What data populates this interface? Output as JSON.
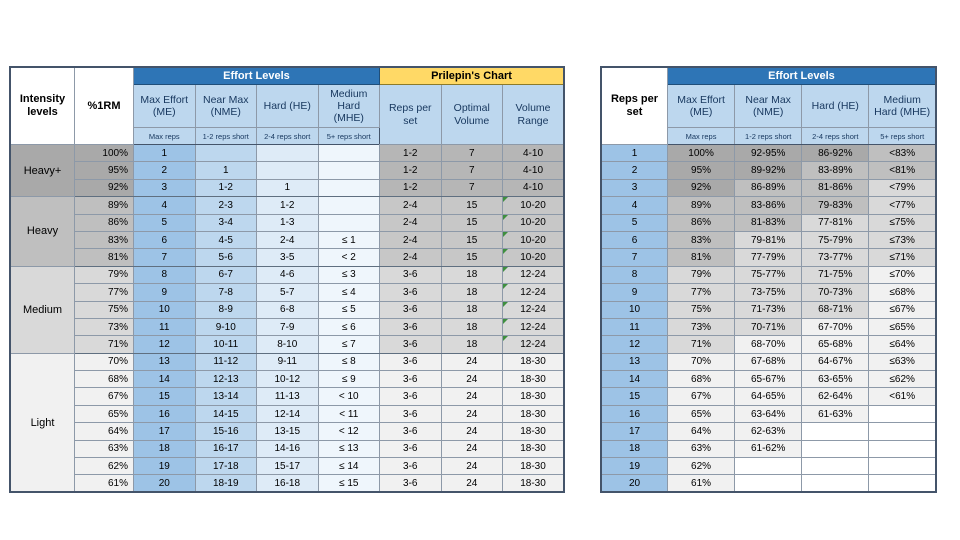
{
  "colors": {
    "effort_banner_blue": "#2e75b6",
    "effort_subheader_blue": "#bdd7ee",
    "prilepin_banner_yellow": "#ffd966",
    "prilepin_subheader_yellow": "#fff2cc",
    "me_column_blue": "#9dc3e6",
    "nme_column_blue": "#bdd7ee",
    "he_column_blue": "#deebf7",
    "mhe_column_blue": "#eff6fc",
    "gray_heavy_plus": "#a9a9a9",
    "gray_heavy": "#bfbfbf",
    "gray_medium": "#d9d9d9",
    "gray_light": "#f1f1f1",
    "comment_flag_green": "#3f8f3f"
  },
  "left_table": {
    "headers": {
      "intensity": "Intensity levels",
      "pct1rm": "%1RM",
      "effort_banner": "Effort Levels",
      "prilepin_banner": "Prilepin's Chart",
      "effort_cols": [
        {
          "title": "Max Effort (ME)",
          "sub": "Max reps"
        },
        {
          "title": "Near Max (NME)",
          "sub": "1-2 reps short"
        },
        {
          "title": "Hard (HE)",
          "sub": "2-4 reps short"
        },
        {
          "title": "Medium Hard (MHE)",
          "sub": "5+ reps short"
        }
      ],
      "prilepin_cols": [
        "Reps per set",
        "Optimal Volume",
        "Volume Range"
      ]
    },
    "groups": [
      {
        "label": "Heavy+",
        "rows": 3,
        "shade": "g1",
        "pshade": "p1"
      },
      {
        "label": "Heavy",
        "rows": 4,
        "shade": "g2",
        "pshade": "p2"
      },
      {
        "label": "Medium",
        "rows": 5,
        "shade": "g3",
        "pshade": "g3"
      },
      {
        "label": "Light",
        "rows": 8,
        "shade": "g4",
        "pshade": "g4"
      }
    ],
    "rows": [
      {
        "pct": "100%",
        "me": "1",
        "nme": "",
        "he": "",
        "mhe": "",
        "reps": "1-2",
        "opt": "7",
        "vol": "4-10",
        "flag": false
      },
      {
        "pct": "95%",
        "me": "2",
        "nme": "1",
        "he": "",
        "mhe": "",
        "reps": "1-2",
        "opt": "7",
        "vol": "4-10",
        "flag": false
      },
      {
        "pct": "92%",
        "me": "3",
        "nme": "1-2",
        "he": "1",
        "mhe": "",
        "reps": "1-2",
        "opt": "7",
        "vol": "4-10",
        "flag": false
      },
      {
        "pct": "89%",
        "me": "4",
        "nme": "2-3",
        "he": "1-2",
        "mhe": "",
        "reps": "2-4",
        "opt": "15",
        "vol": "10-20",
        "flag": true
      },
      {
        "pct": "86%",
        "me": "5",
        "nme": "3-4",
        "he": "1-3",
        "mhe": "",
        "reps": "2-4",
        "opt": "15",
        "vol": "10-20",
        "flag": true
      },
      {
        "pct": "83%",
        "me": "6",
        "nme": "4-5",
        "he": "2-4",
        "mhe": "≤ 1",
        "reps": "2-4",
        "opt": "15",
        "vol": "10-20",
        "flag": true
      },
      {
        "pct": "81%",
        "me": "7",
        "nme": "5-6",
        "he": "3-5",
        "mhe": "< 2",
        "reps": "2-4",
        "opt": "15",
        "vol": "10-20",
        "flag": true
      },
      {
        "pct": "79%",
        "me": "8",
        "nme": "6-7",
        "he": "4-6",
        "mhe": "≤ 3",
        "reps": "3-6",
        "opt": "18",
        "vol": "12-24",
        "flag": true
      },
      {
        "pct": "77%",
        "me": "9",
        "nme": "7-8",
        "he": "5-7",
        "mhe": "≤ 4",
        "reps": "3-6",
        "opt": "18",
        "vol": "12-24",
        "flag": true
      },
      {
        "pct": "75%",
        "me": "10",
        "nme": "8-9",
        "he": "6-8",
        "mhe": "≤ 5",
        "reps": "3-6",
        "opt": "18",
        "vol": "12-24",
        "flag": true
      },
      {
        "pct": "73%",
        "me": "11",
        "nme": "9-10",
        "he": "7-9",
        "mhe": "≤ 6",
        "reps": "3-6",
        "opt": "18",
        "vol": "12-24",
        "flag": true
      },
      {
        "pct": "71%",
        "me": "12",
        "nme": "10-11",
        "he": "8-10",
        "mhe": "≤ 7",
        "reps": "3-6",
        "opt": "18",
        "vol": "12-24",
        "flag": true
      },
      {
        "pct": "70%",
        "me": "13",
        "nme": "11-12",
        "he": "9-11",
        "mhe": "≤ 8",
        "reps": "3-6",
        "opt": "24",
        "vol": "18-30",
        "flag": false
      },
      {
        "pct": "68%",
        "me": "14",
        "nme": "12-13",
        "he": "10-12",
        "mhe": "≤ 9",
        "reps": "3-6",
        "opt": "24",
        "vol": "18-30",
        "flag": false
      },
      {
        "pct": "67%",
        "me": "15",
        "nme": "13-14",
        "he": "11-13",
        "mhe": "< 10",
        "reps": "3-6",
        "opt": "24",
        "vol": "18-30",
        "flag": false
      },
      {
        "pct": "65%",
        "me": "16",
        "nme": "14-15",
        "he": "12-14",
        "mhe": "< 11",
        "reps": "3-6",
        "opt": "24",
        "vol": "18-30",
        "flag": false
      },
      {
        "pct": "64%",
        "me": "17",
        "nme": "15-16",
        "he": "13-15",
        "mhe": "< 12",
        "reps": "3-6",
        "opt": "24",
        "vol": "18-30",
        "flag": false
      },
      {
        "pct": "63%",
        "me": "18",
        "nme": "16-17",
        "he": "14-16",
        "mhe": "≤ 13",
        "reps": "3-6",
        "opt": "24",
        "vol": "18-30",
        "flag": false
      },
      {
        "pct": "62%",
        "me": "19",
        "nme": "17-18",
        "he": "15-17",
        "mhe": "≤ 14",
        "reps": "3-6",
        "opt": "24",
        "vol": "18-30",
        "flag": false
      },
      {
        "pct": "61%",
        "me": "20",
        "nme": "18-19",
        "he": "16-18",
        "mhe": "≤ 15",
        "reps": "3-6",
        "opt": "24",
        "vol": "18-30",
        "flag": false
      }
    ]
  },
  "right_table": {
    "headers": {
      "reps": "Reps per set",
      "effort_banner": "Effort Levels",
      "effort_cols": [
        {
          "title": "Max Effort (ME)",
          "sub": "Max reps"
        },
        {
          "title": "Near Max (NME)",
          "sub": "1-2 reps short"
        },
        {
          "title": "Hard (HE)",
          "sub": "2-4 reps short"
        },
        {
          "title": "Medium Hard (MHE)",
          "sub": "5+ reps short"
        }
      ]
    },
    "rows": [
      {
        "reps": "1",
        "cells": [
          "100%",
          "92-95%",
          "86-92%",
          "<83%"
        ],
        "shades": [
          "g1",
          "g1",
          "g1",
          "g2"
        ]
      },
      {
        "reps": "2",
        "cells": [
          "95%",
          "89-92%",
          "83-89%",
          "<81%"
        ],
        "shades": [
          "g1",
          "g1",
          "g2",
          "g2"
        ]
      },
      {
        "reps": "3",
        "cells": [
          "92%",
          "86-89%",
          "81-86%",
          "<79%"
        ],
        "shades": [
          "g1",
          "g2",
          "g2",
          "g3"
        ]
      },
      {
        "reps": "4",
        "cells": [
          "89%",
          "83-86%",
          "79-83%",
          "<77%"
        ],
        "shades": [
          "g2",
          "g2",
          "g2",
          "g3"
        ]
      },
      {
        "reps": "5",
        "cells": [
          "86%",
          "81-83%",
          "77-81%",
          "≤75%"
        ],
        "shades": [
          "g2",
          "g2",
          "g3",
          "g3"
        ]
      },
      {
        "reps": "6",
        "cells": [
          "83%",
          "79-81%",
          "75-79%",
          "≤73%"
        ],
        "shades": [
          "g2",
          "g3",
          "g3",
          "g3"
        ]
      },
      {
        "reps": "7",
        "cells": [
          "81%",
          "77-79%",
          "73-77%",
          "≤71%"
        ],
        "shades": [
          "g2",
          "g3",
          "g3",
          "g3"
        ]
      },
      {
        "reps": "8",
        "cells": [
          "79%",
          "75-77%",
          "71-75%",
          "≤70%"
        ],
        "shades": [
          "g3",
          "g3",
          "g3",
          "g4"
        ]
      },
      {
        "reps": "9",
        "cells": [
          "77%",
          "73-75%",
          "70-73%",
          "≤68%"
        ],
        "shades": [
          "g3",
          "g3",
          "g3",
          "g4"
        ]
      },
      {
        "reps": "10",
        "cells": [
          "75%",
          "71-73%",
          "68-71%",
          "≤67%"
        ],
        "shades": [
          "g3",
          "g3",
          "g3",
          "g4"
        ]
      },
      {
        "reps": "11",
        "cells": [
          "73%",
          "70-71%",
          "67-70%",
          "≤65%"
        ],
        "shades": [
          "g3",
          "g3",
          "g4",
          "g4"
        ]
      },
      {
        "reps": "12",
        "cells": [
          "71%",
          "68-70%",
          "65-68%",
          "≤64%"
        ],
        "shades": [
          "g3",
          "g4",
          "g4",
          "g4"
        ]
      },
      {
        "reps": "13",
        "cells": [
          "70%",
          "67-68%",
          "64-67%",
          "≤63%"
        ],
        "shades": [
          "g4",
          "g4",
          "g4",
          "g4"
        ]
      },
      {
        "reps": "14",
        "cells": [
          "68%",
          "65-67%",
          "63-65%",
          "≤62%"
        ],
        "shades": [
          "g4",
          "g4",
          "g4",
          "g4"
        ]
      },
      {
        "reps": "15",
        "cells": [
          "67%",
          "64-65%",
          "62-64%",
          "<61%"
        ],
        "shades": [
          "g4",
          "g4",
          "g4",
          "g4"
        ]
      },
      {
        "reps": "16",
        "cells": [
          "65%",
          "63-64%",
          "61-63%",
          ""
        ],
        "shades": [
          "g4",
          "g4",
          "g4",
          "w"
        ]
      },
      {
        "reps": "17",
        "cells": [
          "64%",
          "62-63%",
          "",
          ""
        ],
        "shades": [
          "g4",
          "g4",
          "w",
          "w"
        ]
      },
      {
        "reps": "18",
        "cells": [
          "63%",
          "61-62%",
          "",
          ""
        ],
        "shades": [
          "g4",
          "g4",
          "w",
          "w"
        ]
      },
      {
        "reps": "19",
        "cells": [
          "62%",
          "",
          "",
          ""
        ],
        "shades": [
          "g4",
          "w",
          "w",
          "w"
        ]
      },
      {
        "reps": "20",
        "cells": [
          "61%",
          "",
          "",
          ""
        ],
        "shades": [
          "g4",
          "w",
          "w",
          "w"
        ]
      }
    ]
  }
}
